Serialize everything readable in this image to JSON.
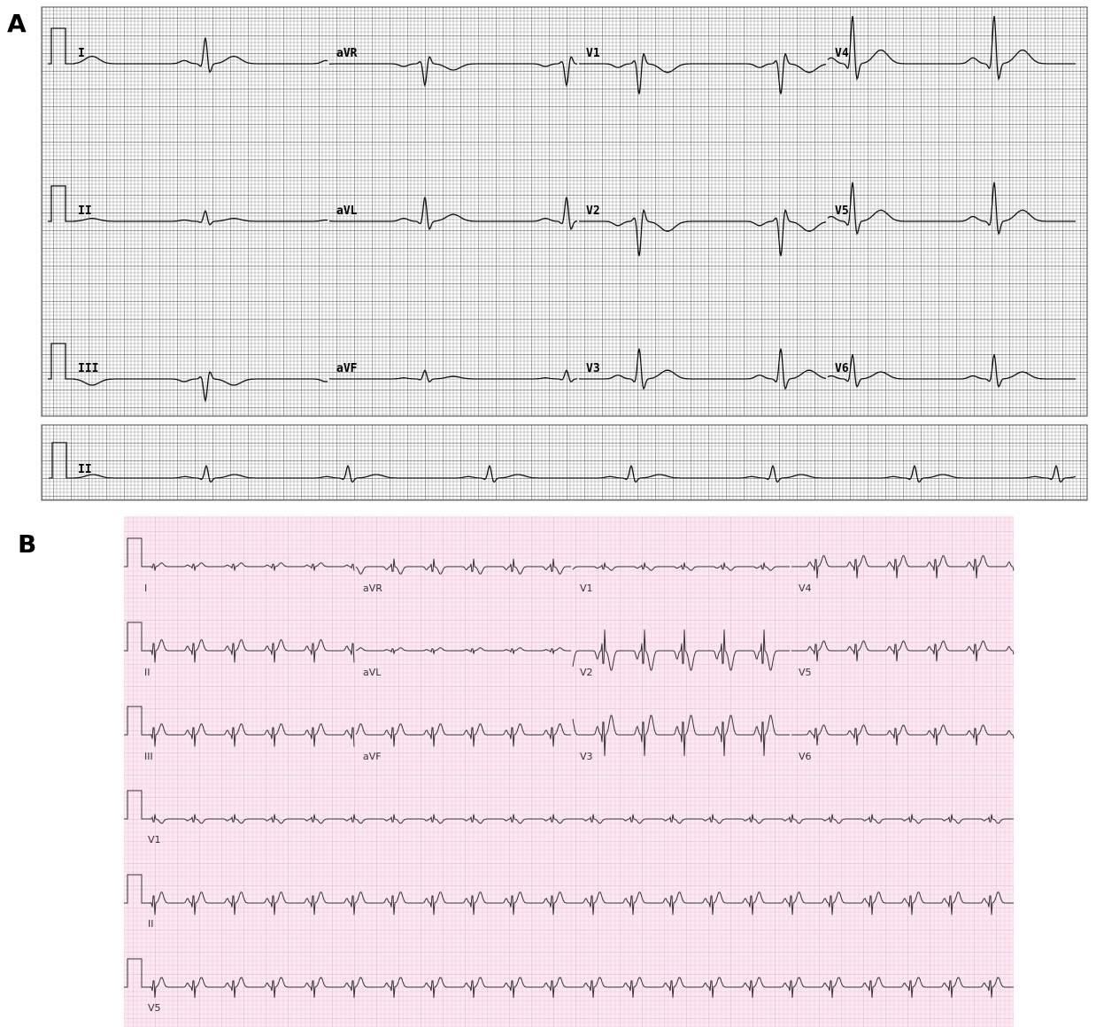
{
  "panels": [
    {
      "label": "A",
      "leads": [
        [
          "I",
          "aVR",
          "V1",
          "V4"
        ],
        [
          "II",
          "aVL",
          "V2",
          "V5"
        ],
        [
          "III",
          "aVF",
          "V3",
          "V6"
        ]
      ],
      "rhythm": [
        "II"
      ]
    },
    {
      "label": "B",
      "leads": [
        [
          "I",
          "aVR",
          "V1",
          "V4"
        ],
        [
          "II",
          "aVL",
          "V2",
          "V5"
        ],
        [
          "III",
          "aVF",
          "V3",
          "V6"
        ]
      ],
      "rhythm": [
        "V1",
        "II",
        "V5"
      ]
    }
  ]
}
